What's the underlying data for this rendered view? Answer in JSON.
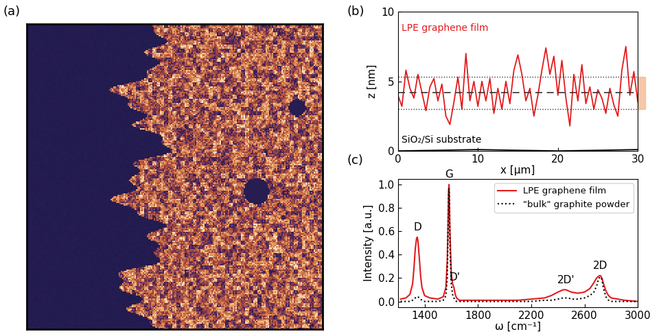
{
  "image_panel": {
    "label": "(a)"
  },
  "chart_data": [
    {
      "panel": "(b)",
      "type": "line",
      "xlabel": "x [μm]",
      "ylabel": "z [nm]",
      "xlim": [
        0,
        30
      ],
      "xticks": [
        0,
        10,
        20,
        30
      ],
      "ylim": [
        0,
        10
      ],
      "yticks": [
        0,
        5,
        10
      ],
      "mean_z": 4.2,
      "std_band": [
        3.0,
        5.3
      ],
      "series": [
        {
          "name": "LPE graphene film",
          "color": "#e41a1c",
          "line_style": "solid",
          "x": [
            0,
            0.5,
            1,
            1.5,
            2,
            2.5,
            3,
            3.5,
            4,
            4.5,
            5,
            5.5,
            6,
            6.5,
            7,
            7.5,
            8,
            8.5,
            9,
            9.5,
            10,
            10.5,
            11,
            11.5,
            12,
            12.5,
            13,
            13.5,
            14,
            14.5,
            15,
            15.5,
            16,
            16.5,
            17,
            17.5,
            18,
            18.5,
            19,
            19.5,
            20,
            20.5,
            21,
            21.5,
            22,
            22.5,
            23,
            23.5,
            24,
            24.5,
            25,
            25.5,
            26,
            26.5,
            27,
            27.5,
            28,
            28.5,
            29,
            29.5,
            30
          ],
          "values": [
            4.0,
            3.2,
            5.8,
            4.5,
            3.8,
            5.5,
            4.2,
            2.9,
            4.6,
            5.2,
            3.6,
            4.8,
            2.5,
            1.9,
            3.5,
            5.3,
            3.0,
            7.0,
            3.6,
            5.0,
            3.2,
            5.0,
            3.6,
            5.2,
            2.7,
            4.5,
            3.0,
            5.0,
            3.4,
            5.8,
            6.9,
            5.5,
            3.6,
            4.5,
            2.5,
            4.0,
            5.8,
            7.4,
            5.5,
            6.8,
            4.0,
            6.5,
            3.8,
            1.8,
            5.5,
            3.6,
            6.2,
            3.4,
            4.6,
            3.0,
            4.4,
            3.8,
            2.7,
            4.5,
            3.3,
            2.5,
            5.8,
            7.5,
            4.0,
            5.7,
            3.5
          ]
        },
        {
          "name": "SiO₂/Si substrate",
          "color": "#000000",
          "line_style": "solid",
          "x": [
            0,
            5,
            10,
            15,
            20,
            25,
            30
          ],
          "values": [
            0.0,
            0.05,
            0.1,
            0.05,
            0.0,
            0.05,
            0.1
          ]
        }
      ]
    },
    {
      "panel": "(c)",
      "type": "line",
      "xlabel": "ω [cm⁻¹]",
      "ylabel": "Intensity [a.u.]",
      "xlim": [
        1200,
        3000
      ],
      "xticks": [
        1400,
        1800,
        2200,
        2600,
        3000
      ],
      "ylim": [
        -0.05,
        1.05
      ],
      "yticks": [
        {
          "value": 0,
          "label": "0.0"
        },
        {
          "value": 0.2,
          "label": "0.2"
        },
        {
          "value": 0.4,
          "label": "0.4"
        },
        {
          "value": 0.6,
          "label": "0.6"
        },
        {
          "value": 0.8,
          "label": "0.8"
        },
        {
          "value": 1.0,
          "label": "1.0"
        }
      ],
      "legend": "upper right",
      "x": [
        1220,
        1260,
        1290,
        1310,
        1320,
        1330,
        1340,
        1345,
        1350,
        1360,
        1370,
        1380,
        1400,
        1440,
        1500,
        1540,
        1560,
        1570,
        1575,
        1580,
        1583,
        1586,
        1590,
        1600,
        1610,
        1620,
        1630,
        1640,
        1660,
        1700,
        1800,
        1900,
        2000,
        2100,
        2200,
        2300,
        2350,
        2400,
        2440,
        2460,
        2480,
        2500,
        2550,
        2600,
        2640,
        2670,
        2690,
        2700,
        2710,
        2720,
        2730,
        2740,
        2760,
        2780,
        2800,
        2850,
        2900,
        3000
      ],
      "series": [
        {
          "name": "LPE graphene film",
          "color": "#e41a1c",
          "line_style": "solid",
          "values": [
            0.02,
            0.03,
            0.06,
            0.15,
            0.28,
            0.45,
            0.54,
            0.55,
            0.52,
            0.38,
            0.22,
            0.12,
            0.05,
            0.03,
            0.02,
            0.04,
            0.12,
            0.35,
            0.62,
            0.95,
            1.0,
            0.9,
            0.6,
            0.25,
            0.15,
            0.12,
            0.06,
            0.03,
            0.01,
            0.01,
            0.01,
            0.01,
            0.01,
            0.01,
            0.02,
            0.03,
            0.05,
            0.08,
            0.1,
            0.1,
            0.09,
            0.08,
            0.07,
            0.08,
            0.11,
            0.16,
            0.2,
            0.21,
            0.22,
            0.22,
            0.2,
            0.16,
            0.09,
            0.05,
            0.03,
            0.02,
            0.01,
            0.0
          ]
        },
        {
          "name": "\"bulk\" graphite powder",
          "color": "#000000",
          "line_style": "dotted",
          "values": [
            0,
            0,
            0,
            0.01,
            0.02,
            0.03,
            0.04,
            0.04,
            0.04,
            0.03,
            0.02,
            0.01,
            0,
            0,
            0,
            0.01,
            0.05,
            0.2,
            0.5,
            0.9,
            0.97,
            0.85,
            0.5,
            0.15,
            0.06,
            0.03,
            0.01,
            0,
            0,
            0,
            0,
            0,
            0,
            0,
            0,
            0.01,
            0.01,
            0.02,
            0.03,
            0.03,
            0.03,
            0.02,
            0.02,
            0.03,
            0.05,
            0.08,
            0.13,
            0.17,
            0.2,
            0.21,
            0.19,
            0.12,
            0.04,
            0.01,
            0,
            0,
            0,
            0
          ]
        }
      ],
      "annotations": [
        {
          "text": "D",
          "x": 1345
        },
        {
          "text": "G",
          "x": 1583
        },
        {
          "text": "D'",
          "x": 1625
        },
        {
          "text": "2D'",
          "x": 2460
        },
        {
          "text": "2D",
          "x": 2720
        }
      ]
    }
  ]
}
